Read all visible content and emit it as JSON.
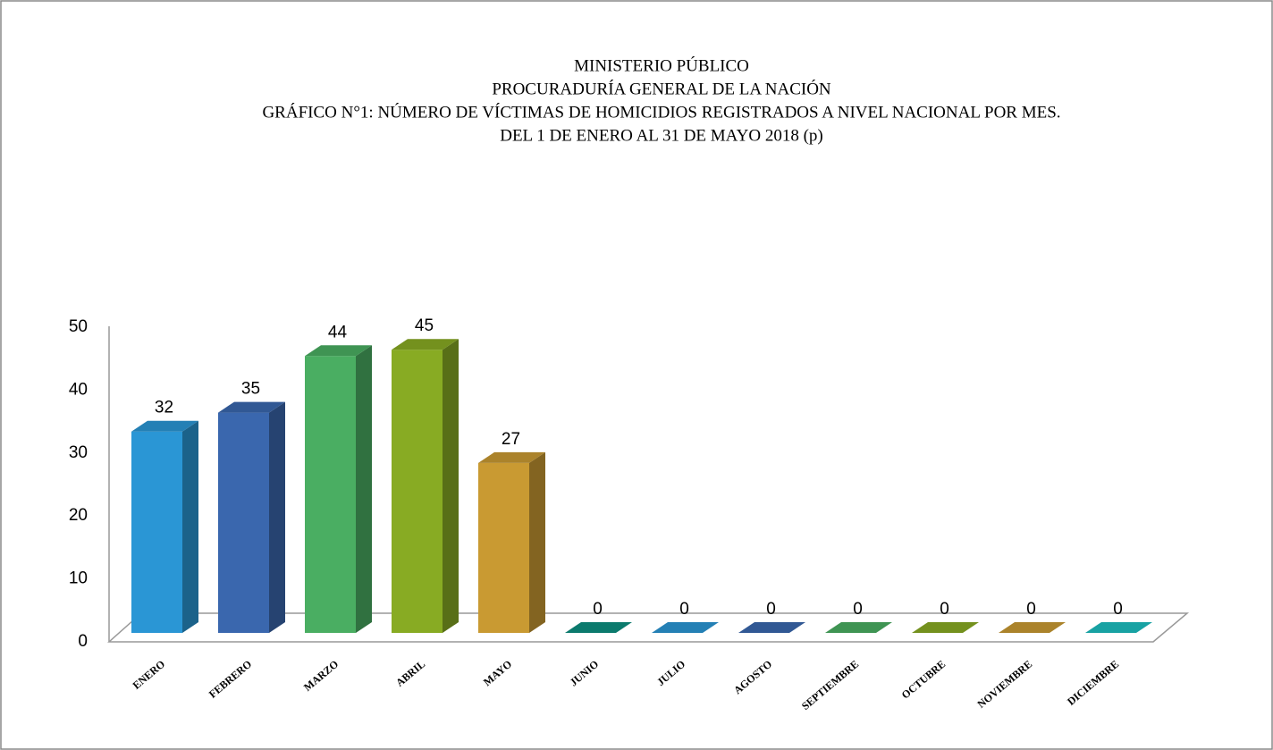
{
  "chart_data": {
    "type": "bar3d",
    "title": [
      "MINISTERIO PÚBLICO",
      "PROCURADURÍA GENERAL DE LA NACIÓN",
      "GRÁFICO N°1: NÚMERO DE VÍCTIMAS DE HOMICIDIOS REGISTRADOS A NIVEL NACIONAL POR MES.",
      "DEL 1 DE ENERO AL 31 DE MAYO 2018 (p)"
    ],
    "categories": [
      "ENERO",
      "FEBRERO",
      "MARZO",
      "ABRIL",
      "MAYO",
      "JUNIO",
      "JULIO",
      "AGOSTO",
      "SEPTIEMBRE",
      "OCTUBRE",
      "NOVIEMBRE",
      "DICIEMBRE"
    ],
    "values": [
      32,
      35,
      44,
      45,
      27,
      0,
      0,
      0,
      0,
      0,
      0,
      0
    ],
    "colors": [
      "#2a96d5",
      "#3a67ae",
      "#4aae62",
      "#88ab23",
      "#c99a32",
      "#0d8f80",
      "#2a96d5",
      "#3a67ae",
      "#4aae62",
      "#88ab23",
      "#c99a32",
      "#1cbfc0"
    ],
    "ylim": [
      0,
      50
    ],
    "yticks": [
      0,
      10,
      20,
      30,
      40,
      50
    ]
  }
}
